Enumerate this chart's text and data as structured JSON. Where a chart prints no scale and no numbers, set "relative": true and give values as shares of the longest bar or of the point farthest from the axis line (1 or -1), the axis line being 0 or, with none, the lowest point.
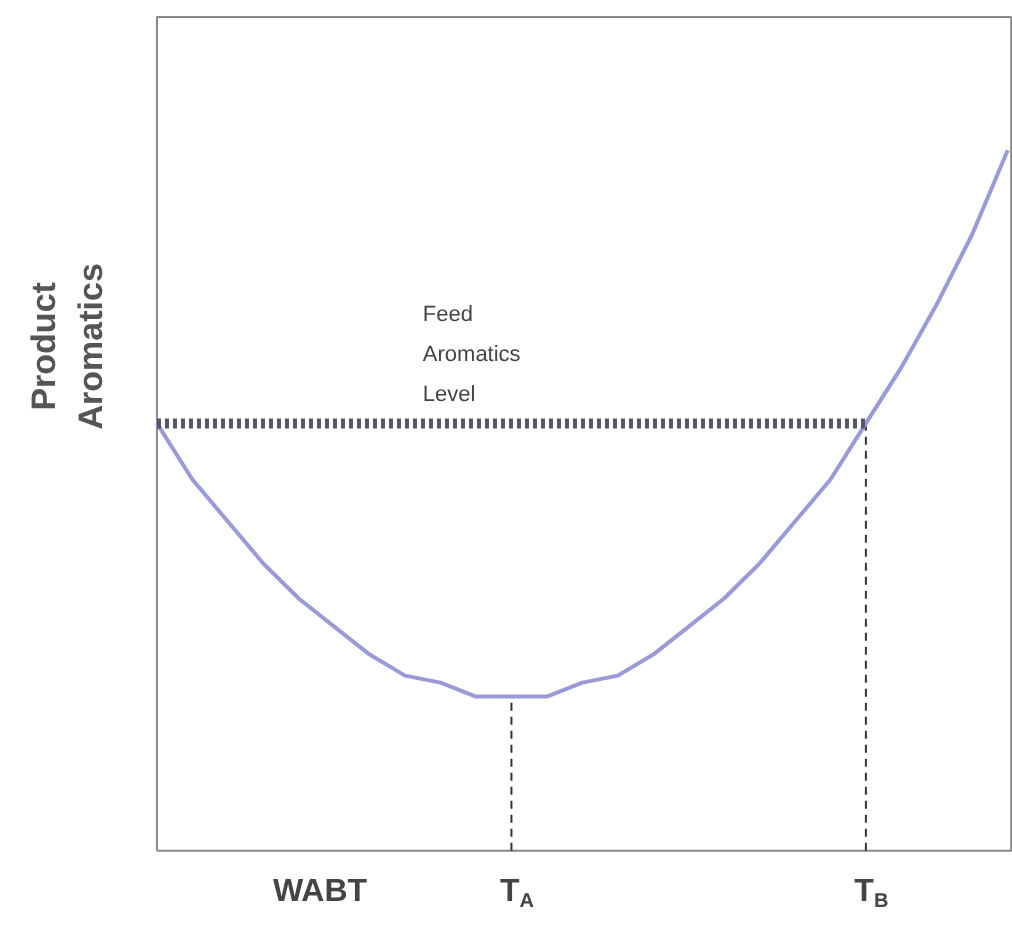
{
  "chart_data": {
    "type": "line",
    "relative": true,
    "xlabel": "WABT",
    "ylabel": "Product Aromatics",
    "categories": [
      null,
      null,
      null,
      null,
      null,
      null,
      null,
      null,
      null,
      null,
      "T$_{A}$",
      null,
      null,
      null,
      null,
      null,
      null,
      null,
      null,
      null,
      "T$_{B}$",
      null,
      null,
      null,
      null
    ],
    "series": [
      {
        "color": "#9a9ad8",
        "line_style": "solid",
        "values": [
          0.61,
          0.53,
          0.47,
          0.41,
          0.36,
          0.32,
          0.28,
          0.25,
          0.24,
          0.22,
          0.22,
          0.22,
          0.24,
          0.25,
          0.28,
          0.32,
          0.36,
          0.41,
          0.47,
          0.53,
          0.61,
          0.69,
          0.78,
          0.88,
          1.0
        ]
      },
      {
        "color": "#55556a",
        "line_style": "dotted",
        "values": [
          0.61,
          0.61,
          0.61,
          0.61,
          0.61,
          0.61,
          0.61,
          0.61,
          0.61,
          0.61,
          0.61,
          0.61,
          0.61,
          0.61,
          0.61,
          0.61,
          0.61,
          0.61,
          0.61,
          0.61,
          0.61,
          null,
          null,
          null,
          null
        ]
      }
    ],
    "ref_lines": [
      {
        "axis": "x",
        "value": "T$_{A}$",
        "color": "#333333",
        "line_style": "dashed"
      },
      {
        "axis": "x",
        "value": "T$_{B}$",
        "color": "#333333",
        "line_style": "dashed"
      }
    ],
    "annotations": [
      {
        "text": "Feed Aromatics Level",
        "y": 0.61
      }
    ]
  }
}
